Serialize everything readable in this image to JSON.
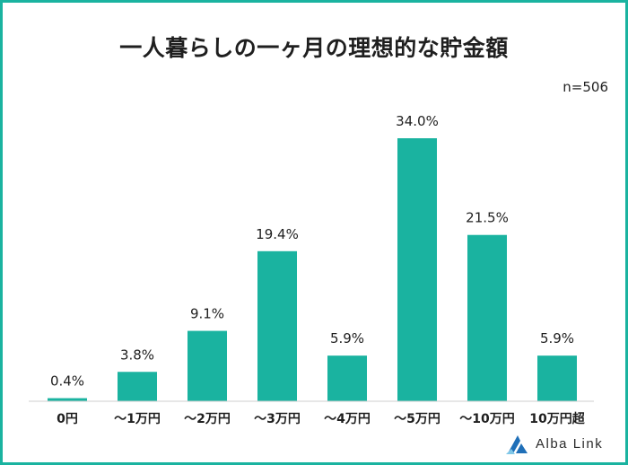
{
  "title": "一人暮らしの一ヶ月の理想的な貯金額",
  "sample_size": "n=506",
  "brand": "Alba Link",
  "colors": {
    "bar": "#1ab3a0",
    "frame": "#1ab3a0",
    "baseline": "#cfcfcf",
    "logo_blue": "#1f6fb8",
    "logo_light": "#7fc7e8"
  },
  "chart_data": {
    "type": "bar",
    "categories": [
      "0円",
      "～1万円",
      "～2万円",
      "～3万円",
      "～4万円",
      "～5万円",
      "～10万円",
      "10万円超"
    ],
    "values": [
      0.4,
      3.8,
      9.1,
      19.4,
      5.9,
      34.0,
      21.5,
      5.9
    ],
    "labels": [
      "0.4%",
      "3.8%",
      "9.1%",
      "19.4%",
      "5.9%",
      "34.0%",
      "21.5%",
      "5.9%"
    ],
    "unit": "%",
    "ylim": [
      0,
      34.0
    ],
    "grid": false,
    "legend": "none"
  }
}
